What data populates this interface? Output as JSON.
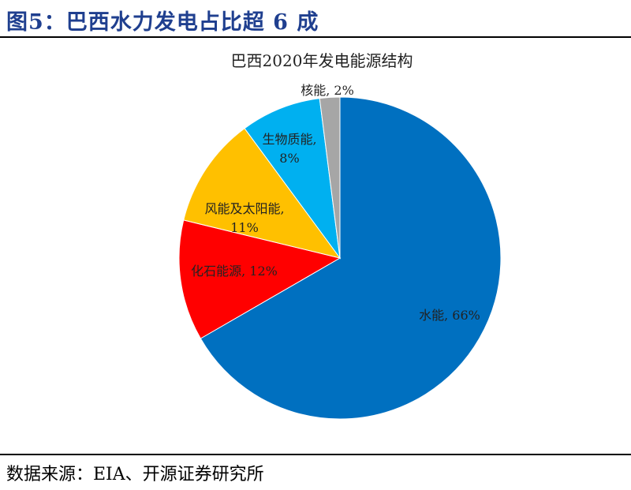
{
  "figure": {
    "title": "图5：巴西水力发电占比超 6 成",
    "source": "数据来源：EIA、开源证券研究所"
  },
  "chart_data": {
    "type": "pie",
    "title": "巴西2020年发电能源结构",
    "slices": [
      {
        "label": "水能, 66%",
        "value": 66,
        "color": "#0070c0"
      },
      {
        "label": "化石能源, 12%",
        "value": 12,
        "color": "#ff0000"
      },
      {
        "label": "风能及太阳能, 11%",
        "value": 11,
        "color": "#ffc000"
      },
      {
        "label": "生物质能, 8%",
        "value": 8,
        "color": "#00b0f0"
      },
      {
        "label": "核能, 2%",
        "value": 2,
        "color": "#a6a6a6"
      }
    ],
    "start": "12 o'clock",
    "direction": "clockwise"
  }
}
